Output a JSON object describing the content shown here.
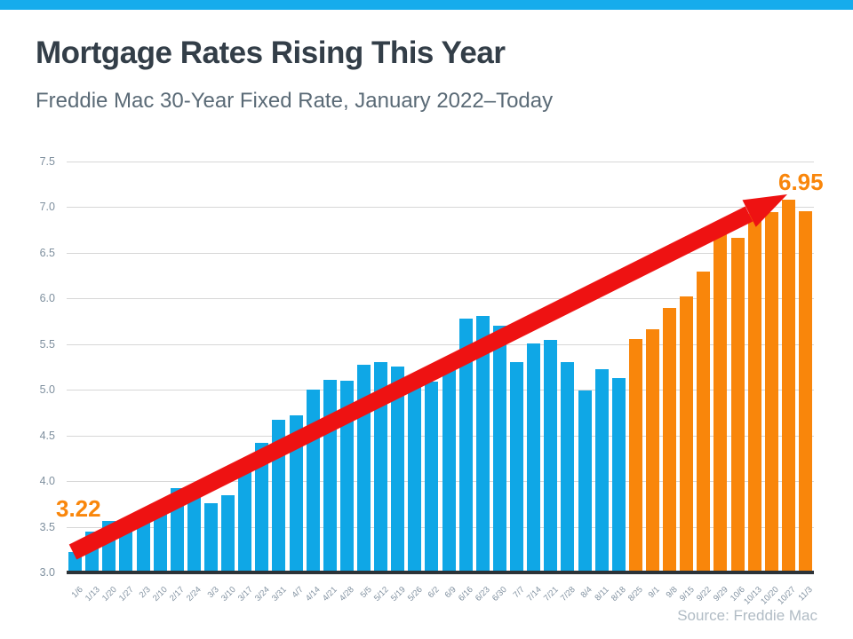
{
  "accent": {
    "top_bar_color": "#16ACEC"
  },
  "header": {
    "title": "Mortgage Rates Rising This Year",
    "subtitle": "Freddie Mac 30-Year Fixed Rate, January 2022–Today"
  },
  "source": {
    "label": "Source: Freddie Mac"
  },
  "chart_data": {
    "type": "bar",
    "title": "Mortgage Rates Rising This Year",
    "subtitle": "Freddie Mac 30-Year Fixed Rate, January 2022–Today",
    "xlabel": "",
    "ylabel": "",
    "categories": [
      "1/6",
      "1/13",
      "1/20",
      "1/27",
      "2/3",
      "2/10",
      "2/17",
      "2/24",
      "3/3",
      "3/10",
      "3/17",
      "3/24",
      "3/31",
      "4/7",
      "4/14",
      "4/21",
      "4/28",
      "5/5",
      "5/12",
      "5/19",
      "5/26",
      "6/2",
      "6/9",
      "6/16",
      "6/23",
      "6/30",
      "7/7",
      "7/14",
      "7/21",
      "7/28",
      "8/4",
      "8/11",
      "8/18",
      "8/25",
      "9/1",
      "9/8",
      "9/15",
      "9/22",
      "9/29",
      "10/6",
      "10/13",
      "10/20",
      "10/27",
      "11/3"
    ],
    "values": [
      3.22,
      3.45,
      3.56,
      3.55,
      3.55,
      3.69,
      3.92,
      3.89,
      3.76,
      3.85,
      4.16,
      4.42,
      4.67,
      4.72,
      5.0,
      5.11,
      5.1,
      5.27,
      5.3,
      5.25,
      5.1,
      5.09,
      5.23,
      5.78,
      5.81,
      5.7,
      5.3,
      5.51,
      5.54,
      5.3,
      4.99,
      5.22,
      5.13,
      5.55,
      5.66,
      5.89,
      6.02,
      6.29,
      6.7,
      6.66,
      6.92,
      6.94,
      7.08,
      6.95
    ],
    "series_name": "30-Year Fixed Rate",
    "ylim": [
      3.0,
      7.5
    ],
    "yticks": [
      3.0,
      3.5,
      4.0,
      4.5,
      5.0,
      5.5,
      6.0,
      6.5,
      7.0,
      7.5
    ],
    "grid": true,
    "legend": "none",
    "orange_start_index": 33,
    "colors": {
      "blue_bar": "#0FA7E6",
      "orange_bar": "#F9860B",
      "arrow_red": "#EE1212"
    },
    "annotations": {
      "start": {
        "text": "3.22",
        "color": "#F9860B"
      },
      "end": {
        "text": "6.95",
        "color": "#F9860B"
      }
    }
  }
}
